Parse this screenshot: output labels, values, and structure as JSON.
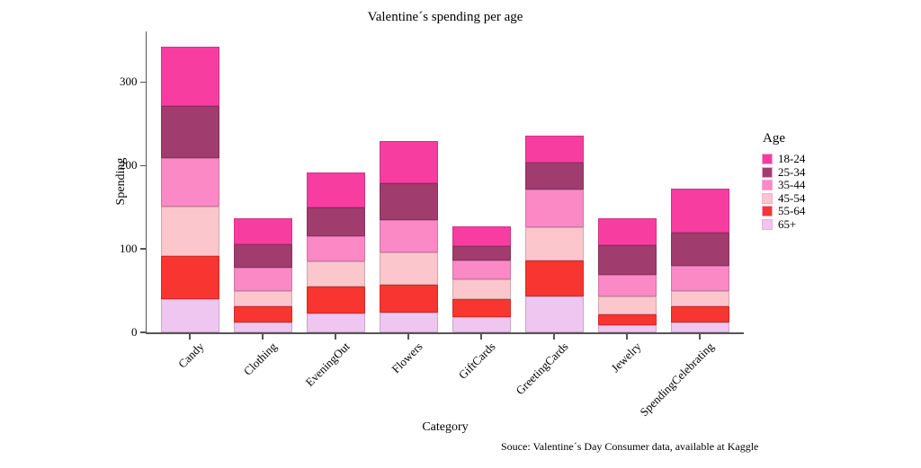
{
  "chart_data": {
    "type": "bar",
    "stacked": true,
    "title": "Valentine´s spending per age",
    "xlabel": "Category",
    "ylabel": "Spending",
    "legend_title": "Age",
    "legend_position": "right",
    "grid": false,
    "background": "#ffffff",
    "axis_color": "#555555",
    "source": "Souce: Valentine´s Day Consumer data, available at Kaggle",
    "categories": [
      "Candy",
      "Clothing",
      "EveningOut",
      "Flowers",
      "GiftCards",
      "GreetingCards",
      "Jewelry",
      "SpendingCelebrating"
    ],
    "y_ticks": [
      0,
      100,
      200,
      300
    ],
    "ylim": [
      0,
      355
    ],
    "series": [
      {
        "name": "18-24",
        "color": "#f83da1",
        "values": [
          71,
          32,
          42,
          50,
          24,
          33,
          33,
          52
        ]
      },
      {
        "name": "25-34",
        "color": "#a13c6e",
        "values": [
          62,
          28,
          35,
          44,
          17,
          32,
          35,
          40
        ]
      },
      {
        "name": "35-44",
        "color": "#fa89c6",
        "values": [
          58,
          27,
          30,
          39,
          22,
          45,
          26,
          30
        ]
      },
      {
        "name": "45-54",
        "color": "#fcc6cd",
        "values": [
          60,
          19,
          30,
          39,
          24,
          40,
          22,
          19
        ]
      },
      {
        "name": "55-64",
        "color": "#f83530",
        "values": [
          51,
          19,
          32,
          33,
          22,
          43,
          12,
          19
        ]
      },
      {
        "name": "65+",
        "color": "#eec6ef",
        "values": [
          40,
          12,
          23,
          24,
          18,
          43,
          9,
          12
        ]
      }
    ],
    "stack_order_bottom_to_top": [
      "65+",
      "55-64",
      "45-54",
      "35-44",
      "25-34",
      "18-24"
    ],
    "category_totals": [
      342,
      137,
      192,
      229,
      127,
      236,
      137,
      172
    ]
  }
}
